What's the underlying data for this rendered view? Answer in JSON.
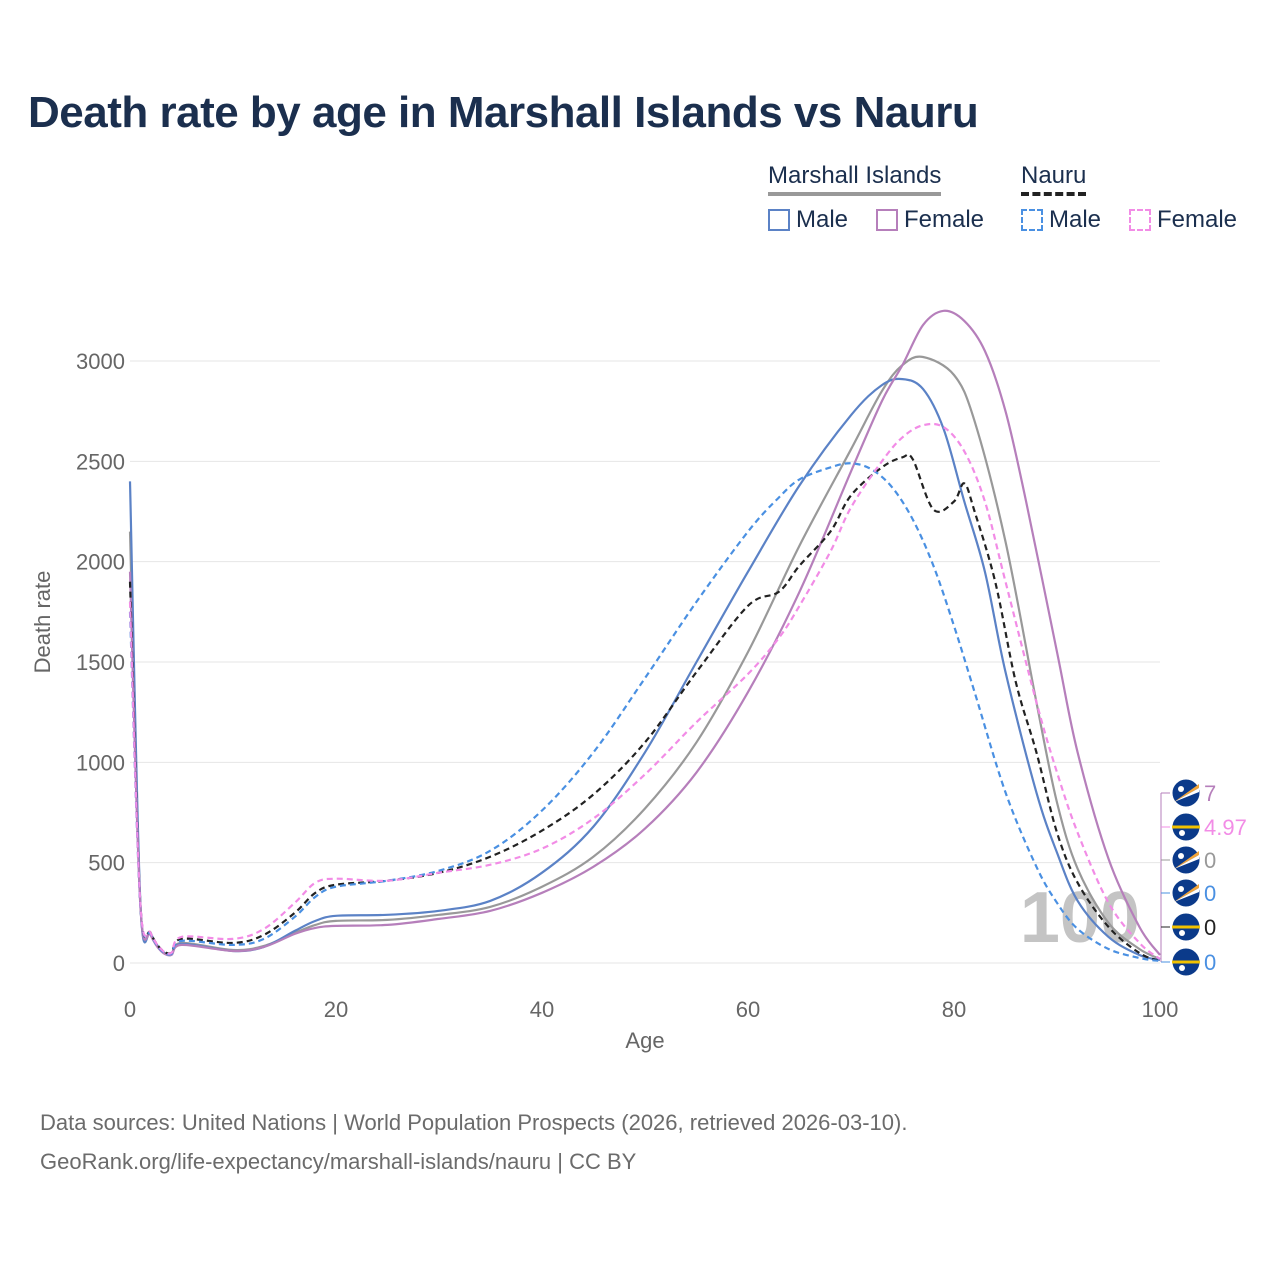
{
  "title": "Death rate by age in Marshall Islands vs Nauru",
  "legend": {
    "groups": [
      {
        "name": "Marshall Islands",
        "color": "#999999",
        "dash": "solid"
      },
      {
        "name": "Nauru",
        "color": "#222222",
        "dash": "dashed"
      }
    ],
    "items": [
      {
        "label": "Male",
        "color": "#5b82c6",
        "dash": "solid"
      },
      {
        "label": "Female",
        "color": "#b67fbb",
        "dash": "solid"
      },
      {
        "label": "Male",
        "color": "#4a90e2",
        "dash": "dashed"
      },
      {
        "label": "Female",
        "color": "#f28ce6",
        "dash": "dashed"
      }
    ]
  },
  "chart_data": {
    "type": "line",
    "xlabel": "Age",
    "ylabel": "Death rate",
    "xlim": [
      0,
      100
    ],
    "ylim": [
      0,
      3300
    ],
    "xticks": [
      "0",
      "20",
      "40",
      "60",
      "80",
      "100"
    ],
    "yticks": [
      "0",
      "500",
      "1000",
      "1500",
      "2000",
      "2500",
      "3000"
    ],
    "watermark": "100",
    "series": [
      {
        "name": "Marshall Islands (total)",
        "color": "#999999",
        "dash": "solid",
        "points": [
          [
            0,
            2150
          ],
          [
            1,
            300
          ],
          [
            2,
            150
          ],
          [
            3,
            65
          ],
          [
            4,
            45
          ],
          [
            5,
            100
          ],
          [
            10,
            65
          ],
          [
            13,
            85
          ],
          [
            16,
            150
          ],
          [
            18,
            190
          ],
          [
            20,
            210
          ],
          [
            25,
            215
          ],
          [
            30,
            240
          ],
          [
            35,
            280
          ],
          [
            40,
            380
          ],
          [
            45,
            530
          ],
          [
            50,
            770
          ],
          [
            55,
            1100
          ],
          [
            60,
            1550
          ],
          [
            65,
            2080
          ],
          [
            70,
            2560
          ],
          [
            73,
            2850
          ],
          [
            75,
            2980
          ],
          [
            77,
            3020
          ],
          [
            80,
            2930
          ],
          [
            82,
            2700
          ],
          [
            85,
            2100
          ],
          [
            88,
            1300
          ],
          [
            90,
            800
          ],
          [
            92,
            470
          ],
          [
            95,
            200
          ],
          [
            98,
            70
          ],
          [
            100,
            20
          ]
        ]
      },
      {
        "name": "Marshall Islands Male",
        "color": "#5b82c6",
        "dash": "solid",
        "points": [
          [
            0,
            2400
          ],
          [
            1,
            310
          ],
          [
            2,
            150
          ],
          [
            3,
            65
          ],
          [
            4,
            40
          ],
          [
            5,
            95
          ],
          [
            10,
            60
          ],
          [
            13,
            80
          ],
          [
            16,
            160
          ],
          [
            18,
            210
          ],
          [
            20,
            235
          ],
          [
            25,
            240
          ],
          [
            30,
            260
          ],
          [
            35,
            310
          ],
          [
            40,
            450
          ],
          [
            45,
            680
          ],
          [
            50,
            1050
          ],
          [
            55,
            1500
          ],
          [
            60,
            1950
          ],
          [
            65,
            2380
          ],
          [
            70,
            2730
          ],
          [
            73,
            2880
          ],
          [
            75,
            2910
          ],
          [
            77,
            2860
          ],
          [
            79,
            2660
          ],
          [
            81,
            2300
          ],
          [
            83,
            1950
          ],
          [
            85,
            1450
          ],
          [
            88,
            850
          ],
          [
            90,
            550
          ],
          [
            92,
            310
          ],
          [
            95,
            130
          ],
          [
            98,
            40
          ],
          [
            100,
            15
          ]
        ]
      },
      {
        "name": "Marshall Islands Female",
        "color": "#b67fbb",
        "dash": "solid",
        "points": [
          [
            0,
            1950
          ],
          [
            1,
            290
          ],
          [
            2,
            140
          ],
          [
            3,
            60
          ],
          [
            4,
            40
          ],
          [
            5,
            90
          ],
          [
            10,
            60
          ],
          [
            13,
            80
          ],
          [
            16,
            145
          ],
          [
            18,
            175
          ],
          [
            20,
            185
          ],
          [
            25,
            190
          ],
          [
            30,
            220
          ],
          [
            35,
            260
          ],
          [
            40,
            350
          ],
          [
            45,
            480
          ],
          [
            50,
            670
          ],
          [
            55,
            950
          ],
          [
            60,
            1350
          ],
          [
            65,
            1850
          ],
          [
            70,
            2450
          ],
          [
            73,
            2800
          ],
          [
            75,
            2980
          ],
          [
            77,
            3180
          ],
          [
            79,
            3250
          ],
          [
            81,
            3200
          ],
          [
            83,
            3050
          ],
          [
            85,
            2750
          ],
          [
            87,
            2300
          ],
          [
            90,
            1550
          ],
          [
            92,
            1050
          ],
          [
            95,
            520
          ],
          [
            98,
            180
          ],
          [
            100,
            40
          ]
        ]
      },
      {
        "name": "Nauru (total)",
        "color": "#222222",
        "dash": "dashed",
        "points": [
          [
            0,
            1900
          ],
          [
            1,
            300
          ],
          [
            2,
            150
          ],
          [
            3,
            70
          ],
          [
            4,
            50
          ],
          [
            5,
            120
          ],
          [
            10,
            100
          ],
          [
            13,
            140
          ],
          [
            16,
            250
          ],
          [
            18,
            350
          ],
          [
            20,
            390
          ],
          [
            25,
            410
          ],
          [
            30,
            450
          ],
          [
            35,
            530
          ],
          [
            40,
            660
          ],
          [
            45,
            840
          ],
          [
            50,
            1100
          ],
          [
            55,
            1450
          ],
          [
            60,
            1780
          ],
          [
            63,
            1850
          ],
          [
            65,
            1980
          ],
          [
            68,
            2150
          ],
          [
            70,
            2330
          ],
          [
            73,
            2470
          ],
          [
            75,
            2520
          ],
          [
            76,
            2510
          ],
          [
            78,
            2260
          ],
          [
            80,
            2300
          ],
          [
            81,
            2390
          ],
          [
            82,
            2250
          ],
          [
            84,
            1900
          ],
          [
            86,
            1400
          ],
          [
            88,
            1050
          ],
          [
            90,
            650
          ],
          [
            92,
            400
          ],
          [
            95,
            180
          ],
          [
            98,
            50
          ],
          [
            100,
            10
          ]
        ]
      },
      {
        "name": "Nauru Male",
        "color": "#4a90e2",
        "dash": "dashed",
        "points": [
          [
            0,
            1750
          ],
          [
            1,
            290
          ],
          [
            2,
            145
          ],
          [
            3,
            65
          ],
          [
            4,
            45
          ],
          [
            5,
            110
          ],
          [
            10,
            90
          ],
          [
            13,
            120
          ],
          [
            16,
            230
          ],
          [
            18,
            330
          ],
          [
            20,
            380
          ],
          [
            25,
            410
          ],
          [
            30,
            460
          ],
          [
            35,
            560
          ],
          [
            40,
            760
          ],
          [
            45,
            1050
          ],
          [
            50,
            1420
          ],
          [
            55,
            1800
          ],
          [
            60,
            2150
          ],
          [
            63,
            2320
          ],
          [
            65,
            2410
          ],
          [
            68,
            2470
          ],
          [
            70,
            2490
          ],
          [
            72,
            2460
          ],
          [
            74,
            2370
          ],
          [
            76,
            2210
          ],
          [
            78,
            1980
          ],
          [
            80,
            1680
          ],
          [
            82,
            1350
          ],
          [
            85,
            850
          ],
          [
            88,
            480
          ],
          [
            90,
            300
          ],
          [
            92,
            170
          ],
          [
            95,
            70
          ],
          [
            98,
            25
          ],
          [
            100,
            10
          ]
        ]
      },
      {
        "name": "Nauru Female",
        "color": "#f28ce6",
        "dash": "dashed",
        "points": [
          [
            0,
            1800
          ],
          [
            1,
            300
          ],
          [
            2,
            150
          ],
          [
            3,
            70
          ],
          [
            4,
            50
          ],
          [
            5,
            130
          ],
          [
            10,
            120
          ],
          [
            13,
            170
          ],
          [
            16,
            300
          ],
          [
            18,
            400
          ],
          [
            20,
            420
          ],
          [
            25,
            410
          ],
          [
            30,
            450
          ],
          [
            35,
            490
          ],
          [
            40,
            570
          ],
          [
            45,
            720
          ],
          [
            50,
            940
          ],
          [
            55,
            1200
          ],
          [
            60,
            1440
          ],
          [
            63,
            1620
          ],
          [
            65,
            1780
          ],
          [
            68,
            2050
          ],
          [
            70,
            2270
          ],
          [
            73,
            2500
          ],
          [
            75,
            2620
          ],
          [
            77,
            2680
          ],
          [
            79,
            2670
          ],
          [
            81,
            2550
          ],
          [
            83,
            2300
          ],
          [
            85,
            1900
          ],
          [
            88,
            1300
          ],
          [
            90,
            950
          ],
          [
            92,
            650
          ],
          [
            95,
            300
          ],
          [
            98,
            100
          ],
          [
            100,
            20
          ]
        ]
      }
    ],
    "end_labels": [
      {
        "value": "7",
        "color": "#b67fbb",
        "flag": "marshall-islands"
      },
      {
        "value": "4.97",
        "color": "#f28ce6",
        "flag": "nauru"
      },
      {
        "value": "0",
        "color": "#999999",
        "flag": "marshall-islands"
      },
      {
        "value": "0",
        "color": "#4a90e2",
        "flag": "marshall-islands"
      },
      {
        "value": "0",
        "color": "#222222",
        "flag": "nauru"
      },
      {
        "value": "0",
        "color": "#4a90e2",
        "flag": "nauru"
      }
    ]
  },
  "source": {
    "line1": "Data sources: United Nations | World Population Prospects (2026, retrieved 2026-03-10).",
    "line2": "GeoRank.org/life-expectancy/marshall-islands/nauru | CC BY"
  }
}
